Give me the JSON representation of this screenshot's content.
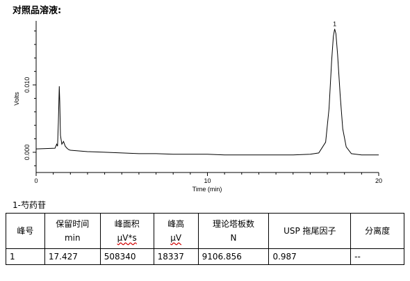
{
  "page": {
    "title": "对照品溶液:"
  },
  "chart_data": {
    "type": "line",
    "xlabel": "Time (min)",
    "ylabel": "Volts",
    "xlim": [
      0,
      20
    ],
    "ylim": [
      -0.003,
      0.0195
    ],
    "x_ticks": [
      0,
      10,
      20
    ],
    "y_ticks": [
      0.0,
      0.01
    ],
    "x_tick_labels": [
      "0",
      "10",
      "20"
    ],
    "y_tick_labels": [
      "0.000",
      "0.010"
    ],
    "peak_annotations": [
      {
        "label": "1",
        "x": 17.43,
        "y": 0.0183
      }
    ],
    "series": [
      {
        "x": [
          0,
          1.1,
          1.2,
          1.25,
          1.3,
          1.35,
          1.38,
          1.42,
          1.5,
          1.6,
          1.7,
          1.8,
          1.9,
          2.0,
          3,
          4,
          5,
          6,
          7,
          8,
          9,
          10,
          11,
          12,
          13,
          14,
          15,
          16,
          16.5,
          16.9,
          17.1,
          17.25,
          17.35,
          17.43,
          17.5,
          17.6,
          17.75,
          17.9,
          18.1,
          18.4,
          19,
          20
        ],
        "y": [
          0.0005,
          0.0006,
          0.0012,
          0.0009,
          0.0045,
          0.0098,
          0.0075,
          0.0025,
          0.0012,
          0.0016,
          0.0009,
          0.0006,
          0.0004,
          0.0003,
          0.0001,
          0.0,
          -0.0001,
          -0.0002,
          -0.0002,
          -0.0003,
          -0.0003,
          -0.0003,
          -0.0004,
          -0.0004,
          -0.0004,
          -0.0004,
          -0.0004,
          -0.0003,
          -0.0001,
          0.0015,
          0.0065,
          0.0135,
          0.0172,
          0.0183,
          0.0176,
          0.0145,
          0.0085,
          0.0035,
          0.0008,
          -0.0002,
          -0.0004,
          -0.0004
        ]
      }
    ]
  },
  "compound": {
    "label": "1-芍药苷"
  },
  "table": {
    "headers": [
      {
        "line1": "峰号",
        "line2": ""
      },
      {
        "line1": "保留时间",
        "line2": "min"
      },
      {
        "line1": "峰面积",
        "line2": "μV*s"
      },
      {
        "line1": "峰高",
        "line2": "μV"
      },
      {
        "line1": "理论塔板数",
        "line2": "N"
      },
      {
        "line1": "USP 拖尾因子",
        "line2": ""
      },
      {
        "line1": "分离度",
        "line2": ""
      }
    ],
    "rows": [
      [
        "1",
        "17.427",
        "508340",
        "18337",
        "9106.856",
        "0.987",
        "--"
      ]
    ]
  }
}
